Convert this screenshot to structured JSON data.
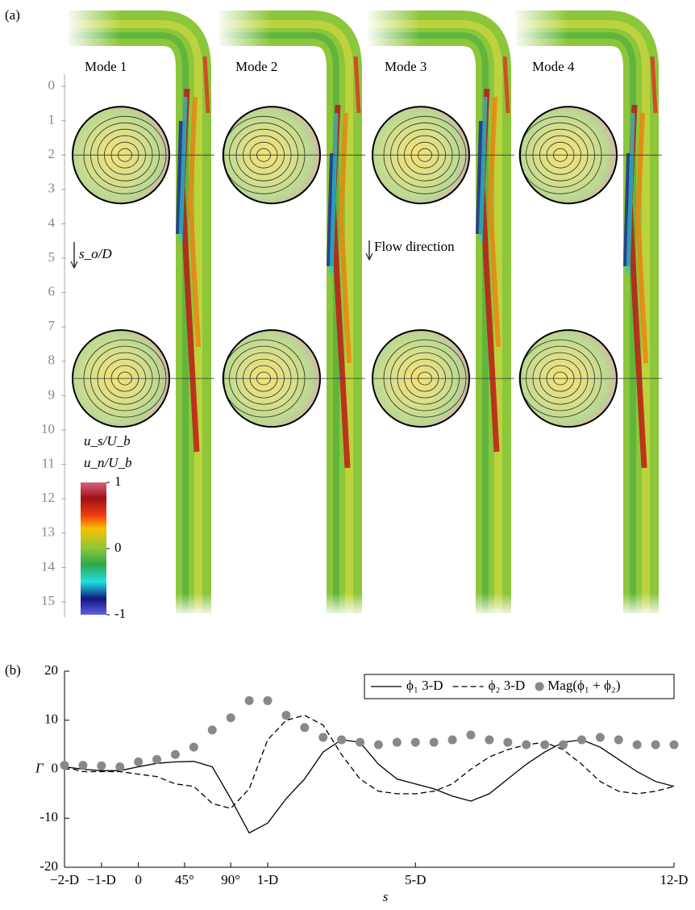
{
  "panel_a": {
    "label": "(a)",
    "modes": [
      "Mode 1",
      "Mode 2",
      "Mode 3",
      "Mode 4"
    ],
    "axis_label": "s_o/D",
    "so_ticks": [
      0,
      1,
      2,
      3,
      4,
      5,
      6,
      7,
      8,
      9,
      10,
      11,
      12,
      13,
      14,
      15
    ],
    "flow_direction": "Flow direction",
    "colorbar": {
      "labels": [
        "u_s/U_b",
        "u_n/U_b"
      ],
      "ticks": [
        1,
        0,
        -1
      ]
    }
  },
  "chart_data": {
    "type": "line",
    "panel_label": "(b)",
    "xlabel": "s",
    "ylabel": "Γ",
    "x": [
      -2,
      -1.5,
      -1,
      -0.5,
      0,
      0.5,
      1,
      1.5,
      2,
      2.5,
      3,
      3.5,
      4,
      4.5,
      5,
      5.5,
      6,
      6.5,
      7,
      7.5,
      8,
      8.5,
      9,
      9.5,
      10,
      10.5,
      11,
      11.5,
      12,
      12.5,
      13,
      13.5,
      14,
      14.5
    ],
    "series": [
      {
        "name": "ϕ₁ 3-D",
        "color": "#000000",
        "style": "solid",
        "values": [
          0.5,
          0,
          -0.3,
          -0.3,
          0.5,
          1.2,
          1.5,
          1.6,
          0.5,
          -6,
          -13,
          -11,
          -6,
          -2,
          3.5,
          6,
          5.5,
          1,
          -2,
          -3,
          -4,
          -5.5,
          -6.5,
          -5,
          -2,
          1,
          3.5,
          5.5,
          6,
          4.5,
          2,
          -0.5,
          -2.5,
          -3.5
        ]
      },
      {
        "name": "ϕ₂ 3-D",
        "color": "#000000",
        "style": "dashed",
        "values": [
          0.5,
          -0.5,
          -0.5,
          -0.5,
          -1,
          -1.5,
          -3,
          -3.5,
          -7,
          -8,
          -4,
          6,
          10,
          11,
          9,
          3,
          -2,
          -4.5,
          -5,
          -5,
          -4.5,
          -3,
          0,
          2.5,
          4,
          5,
          5.5,
          4,
          1,
          -2.5,
          -4.5,
          -5,
          -4.5,
          -3.5
        ]
      },
      {
        "name": "Mag(ϕ₁ + ϕ₂)",
        "color": "#888888",
        "style": "markers",
        "values": [
          0.8,
          0.8,
          0.7,
          0.5,
          1.5,
          2,
          3,
          4.5,
          8,
          10.5,
          14,
          14,
          11,
          8.5,
          6.5,
          6,
          5.5,
          5,
          5.5,
          5.5,
          5.5,
          6,
          7,
          6,
          5.5,
          5,
          5,
          5,
          6,
          6.5,
          6,
          5,
          5,
          5
        ]
      }
    ],
    "xlim": [
      -2,
      14.5
    ],
    "xticks": [
      {
        "value": -2,
        "label": "−2-D"
      },
      {
        "value": -1,
        "label": "−1-D"
      },
      0,
      {
        "value": 1.25,
        "label": "45°"
      },
      {
        "value": 2.5,
        "label": "90°"
      },
      {
        "value": 3.5,
        "label": "1-D"
      },
      {
        "value": 7.5,
        "label": "5-D"
      },
      {
        "value": 14.5,
        "label": "12-D"
      }
    ],
    "ylim": [
      -20,
      20
    ],
    "yticks": [
      -20,
      -10,
      0,
      10,
      20
    ],
    "legend": "top-right"
  }
}
